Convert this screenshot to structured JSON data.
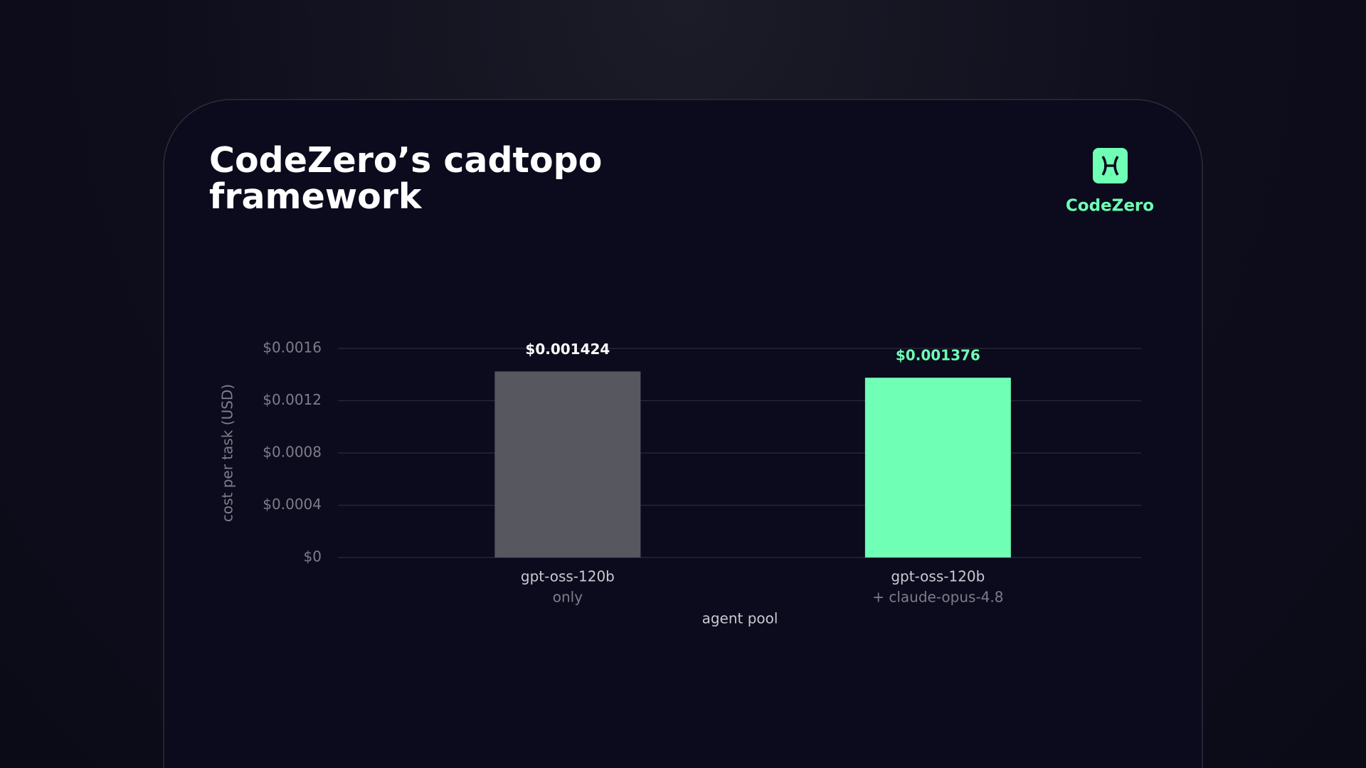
{
  "brand": {
    "name": "CodeZero"
  },
  "chart_data": {
    "type": "bar",
    "title": "CodeZero’s cadtopo framework",
    "xlabel": "agent pool",
    "ylabel": "cost per task (USD)",
    "categories": [
      [
        "gpt-oss-120b",
        "only"
      ],
      [
        "gpt-oss-120b",
        "+ claude-opus-4.8"
      ]
    ],
    "values": [
      0.001424,
      0.001376
    ],
    "value_labels": [
      "$0.001424",
      "$0.001376"
    ],
    "colors": [
      "#575760",
      "#6fffb5"
    ],
    "label_colors": [
      "#ffffff",
      "#6fffb5"
    ],
    "ylim": [
      0,
      0.0016
    ],
    "yticks": [
      {
        "value": 0,
        "label": "$0"
      },
      {
        "value": 0.0004,
        "label": "$0.0004"
      },
      {
        "value": 0.0008,
        "label": "$0.0008"
      },
      {
        "value": 0.0012,
        "label": "$0.0012"
      },
      {
        "value": 0.0016,
        "label": "$0.0016"
      }
    ],
    "grid": true
  }
}
